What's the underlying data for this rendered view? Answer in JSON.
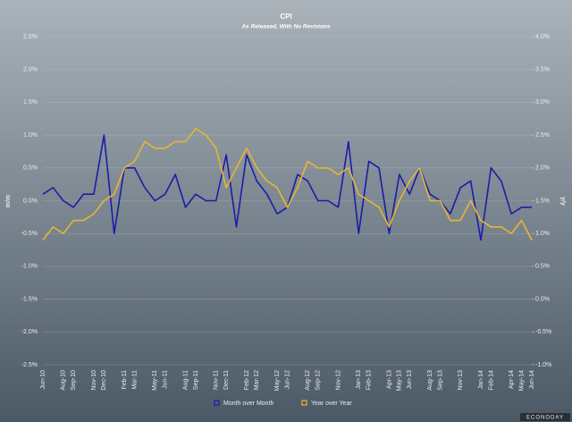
{
  "chart_data": {
    "type": "line",
    "title": "CPI",
    "subtitle": "As Released, With No Revisions",
    "y_label": "m/m",
    "y2_label": "y/y",
    "source": "ECONODAY",
    "categories": [
      "Jun-10",
      null,
      "Aug-10",
      "Sep-10",
      null,
      "Nov-10",
      "Dec-10",
      null,
      "Feb-11",
      "Mar-11",
      null,
      "May-11",
      "Jun-11",
      null,
      "Aug-11",
      "Sep-11",
      null,
      "Nov-11",
      "Dec-11",
      null,
      "Feb-12",
      "Mar-12",
      null,
      "May-12",
      "Jun-12",
      null,
      "Aug-12",
      "Sep-12",
      null,
      "Nov-12",
      null,
      "Jan-13",
      "Feb-13",
      null,
      "Apr-13",
      "May-13",
      "Jun-13",
      null,
      "Aug-13",
      "Sep-13",
      null,
      "Nov-13",
      null,
      "Jan-14",
      "Feb-14",
      null,
      "Apr-14",
      "May-14",
      "Jun-14"
    ],
    "series": [
      {
        "name": "Month over Month",
        "color": "#1c1ca8",
        "values": [
          0.1,
          0.2,
          0.0,
          -0.1,
          0.1,
          0.1,
          1.0,
          -0.5,
          0.5,
          0.5,
          0.2,
          0.0,
          0.1,
          0.4,
          -0.1,
          0.1,
          0.0,
          0.0,
          0.7,
          -0.4,
          0.7,
          0.3,
          0.1,
          -0.2,
          -0.1,
          0.4,
          0.3,
          0.0,
          0.0,
          -0.1,
          0.9,
          -0.5,
          0.6,
          0.5,
          -0.5,
          0.4,
          0.1,
          0.5,
          0.1,
          0.0,
          -0.2,
          0.2,
          0.3,
          -0.6,
          0.5,
          0.3,
          -0.2,
          -0.1,
          -0.1
        ]
      },
      {
        "name": "Year over Year",
        "color": "#e6b634",
        "axis": "y2",
        "values": [
          0.9,
          1.1,
          1.0,
          1.2,
          1.2,
          1.3,
          1.5,
          1.6,
          2.0,
          2.1,
          2.4,
          2.3,
          2.3,
          2.4,
          2.4,
          2.6,
          2.5,
          2.3,
          1.7,
          2.0,
          2.3,
          2.0,
          1.8,
          1.7,
          1.4,
          1.7,
          2.1,
          2.0,
          2.0,
          1.9,
          2.0,
          1.6,
          1.5,
          1.4,
          1.1,
          1.5,
          1.8,
          2.0,
          1.5,
          1.5,
          1.2,
          1.2,
          1.5,
          1.2,
          1.1,
          1.1,
          1.0,
          1.2,
          0.9
        ]
      }
    ],
    "ylim": [
      -2.5,
      2.5
    ],
    "yticks": [
      {
        "value": -2.5,
        "label": "-2.5%"
      },
      {
        "value": -2.0,
        "label": "-2.0%"
      },
      {
        "value": -1.5,
        "label": "-1.5%"
      },
      {
        "value": -1.0,
        "label": "-1.0%"
      },
      {
        "value": -0.5,
        "label": "-0.5%"
      },
      {
        "value": 0.0,
        "label": "0.0%"
      },
      {
        "value": 0.5,
        "label": "0.5%"
      },
      {
        "value": 1.0,
        "label": "1.0%"
      },
      {
        "value": 1.5,
        "label": "1.5%"
      },
      {
        "value": 2.0,
        "label": "2.0%"
      },
      {
        "value": 2.5,
        "label": "2.5%"
      }
    ],
    "y2lim": [
      -1.0,
      4.0
    ],
    "y2ticks": [
      {
        "value": -1.0,
        "label": "-1.0%"
      },
      {
        "value": -0.5,
        "label": "-0.5%"
      },
      {
        "value": 0.0,
        "label": "0.0%"
      },
      {
        "value": 0.5,
        "label": "0.5%"
      },
      {
        "value": 1.0,
        "label": "1.0%"
      },
      {
        "value": 1.5,
        "label": "1.5%"
      },
      {
        "value": 2.0,
        "label": "2.0%"
      },
      {
        "value": 2.5,
        "label": "2.5%"
      },
      {
        "value": 3.0,
        "label": "3.0%"
      },
      {
        "value": 3.5,
        "label": "3.5%"
      },
      {
        "value": 4.0,
        "label": "4.0%"
      }
    ],
    "grid": true,
    "legend": "bottom"
  }
}
